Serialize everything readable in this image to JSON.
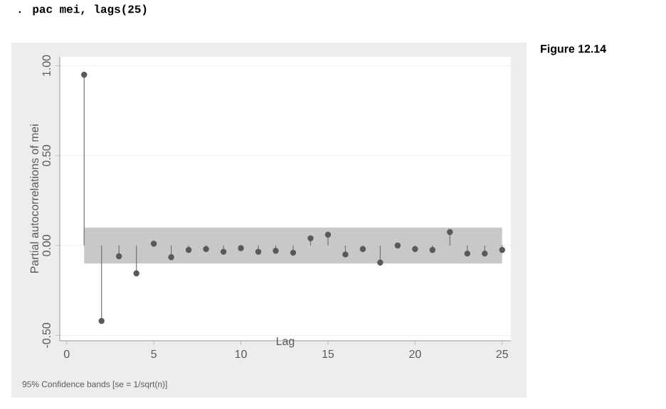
{
  "chart_data": {
    "type": "lollipop",
    "x": [
      1,
      2,
      3,
      4,
      5,
      6,
      7,
      8,
      9,
      10,
      11,
      12,
      13,
      14,
      15,
      16,
      17,
      18,
      19,
      20,
      21,
      22,
      23,
      24,
      25
    ],
    "values": [
      0.95,
      -0.42,
      -0.06,
      -0.155,
      0.01,
      -0.065,
      -0.025,
      -0.02,
      -0.035,
      -0.015,
      -0.035,
      -0.03,
      -0.04,
      0.04,
      0.06,
      -0.05,
      -0.02,
      -0.095,
      0.0,
      -0.02,
      -0.025,
      0.075,
      -0.045,
      -0.045,
      -0.025
    ],
    "color": "#595959",
    "marker": "circle",
    "xlim": [
      -0.4,
      25.5
    ],
    "xticks": [
      0,
      5,
      10,
      15,
      20,
      25
    ],
    "ylim": [
      -0.53,
      1.05
    ],
    "yticks": [
      {
        "value": -0.5,
        "label": "-0.50"
      },
      {
        "value": 0,
        "label": "0.00"
      },
      {
        "value": 0.5,
        "label": "0.50"
      },
      {
        "value": 1,
        "label": "1.00"
      }
    ],
    "grid": "y",
    "xlabel": "Lag",
    "ylabel": "Partial autocorrelations of mei",
    "bands": [
      {
        "axis": "y",
        "from": -0.1,
        "to": 0.1,
        "color": "#c8c8c8"
      }
    ],
    "annotations": [
      "95% Confidence bands [se = 1/sqrt(n)]",
      ". pac mei, lags(25)",
      "Figure 12.14"
    ]
  }
}
